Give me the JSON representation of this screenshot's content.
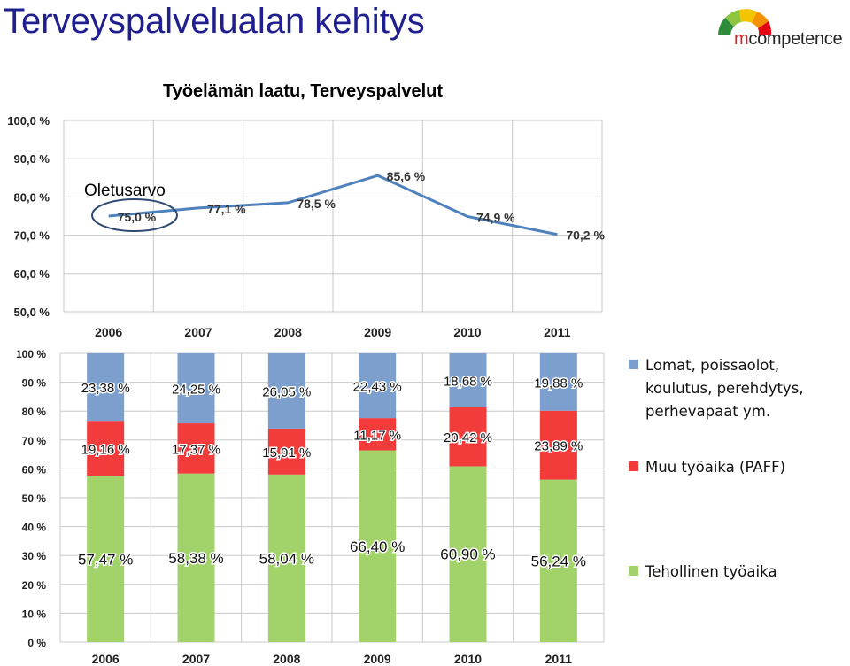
{
  "slide": {
    "title": "Terveyspalvelualan kehitys",
    "logo_m": "m",
    "logo_rest": "competence"
  },
  "annotation": "Oletusarvo",
  "colors": {
    "title": "#1f1f8f",
    "line": "#4f81bd",
    "grid": "#c8c8c8",
    "blue": "#7c9fcd",
    "red": "#f23c3c",
    "green": "#a2d36a"
  },
  "chart_data": [
    {
      "type": "line",
      "title": "Työelämän laatu, Terveyspalvelut",
      "categories": [
        "2006",
        "2007",
        "2008",
        "2009",
        "2010",
        "2011"
      ],
      "values": [
        75.0,
        77.1,
        78.5,
        85.6,
        74.9,
        70.2
      ],
      "data_labels": [
        "75,0 %",
        "77,1 %",
        "78,5 %",
        "85,6 %",
        "74,9 %",
        "70,2 %"
      ],
      "y_ticks": [
        "100,0 %",
        "90,0 %",
        "80,0 %",
        "70,0 %",
        "60,0 %",
        "50,0 %"
      ],
      "ylim": [
        50,
        100
      ],
      "grid": true
    },
    {
      "type": "bar",
      "stacked": true,
      "percent": true,
      "categories": [
        "2006",
        "2007",
        "2008",
        "2009",
        "2010",
        "2011"
      ],
      "y_ticks": [
        "100 %",
        "90 %",
        "80 %",
        "70 %",
        "60 %",
        "50 %",
        "40 %",
        "30 %",
        "20 %",
        "10 %",
        "0 %"
      ],
      "ylim": [
        0,
        100
      ],
      "legend_position": "right",
      "series": [
        {
          "name": "Tehollinen työaika",
          "color": "#a2d36a",
          "values": [
            57.47,
            58.38,
            58.04,
            66.4,
            60.9,
            56.24
          ],
          "labels": [
            "57,47 %",
            "58,38 %",
            "58,04 %",
            "66,40 %",
            "60,90 %",
            "56,24 %"
          ]
        },
        {
          "name": "Muu työaika (PAFF)",
          "color": "#f23c3c",
          "values": [
            19.16,
            17.37,
            15.91,
            11.17,
            20.42,
            23.89
          ],
          "labels": [
            "19,16 %",
            "17,37 %",
            "15,91 %",
            "11,17 %",
            "20,42 %",
            "23,89 %"
          ]
        },
        {
          "name": "Lomat, poissaolot, koulutus, perehdytys, perhevapaat ym.",
          "color": "#7c9fcd",
          "values": [
            23.38,
            24.25,
            26.05,
            22.43,
            18.68,
            19.88
          ],
          "labels": [
            "23,38 %",
            "24,25 %",
            "26,05 %",
            "22,43 %",
            "18,68 %",
            "19,88 %"
          ]
        }
      ]
    }
  ]
}
